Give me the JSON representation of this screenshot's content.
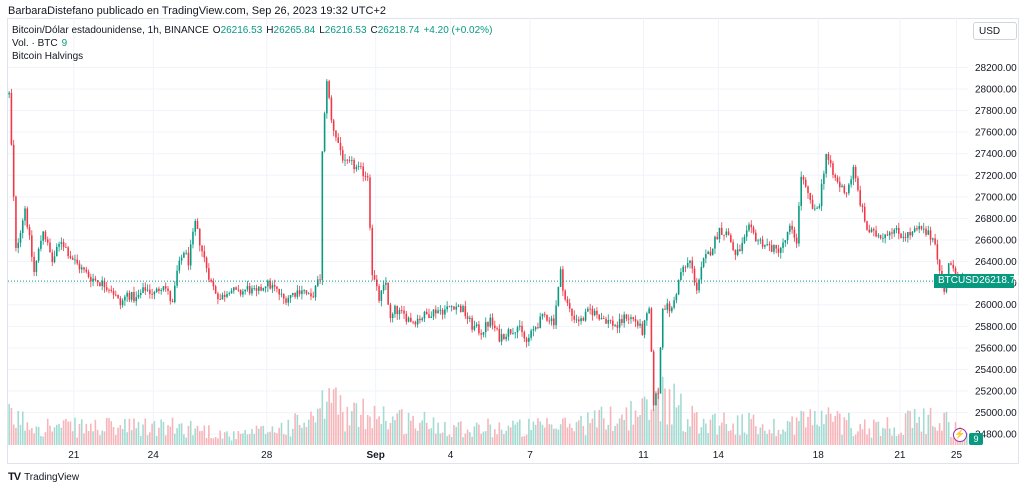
{
  "header": {
    "published_by": "BarbaraDistefano publicado en TradingView.com, Sep 26, 2023 19:32 UTC+2"
  },
  "legend": {
    "symbol": "Bitcoin/Dólar estadounidense, 1h, BINANCE",
    "o_label": "O",
    "o_value": "26216.53",
    "h_label": "H",
    "h_value": "26265.84",
    "l_label": "L",
    "l_value": "26216.53",
    "c_label": "C",
    "c_value": "26218.74",
    "change": "+4.20 (+0.02%)",
    "volume_label": "Vol. · BTC",
    "volume_value": "9",
    "indicator": "Bitcoin Halvings"
  },
  "currency": "USD",
  "price_badge": {
    "ticker": "BTCUSD",
    "value": "26218.74"
  },
  "event_badge": "9",
  "brand": {
    "icon": "TV",
    "name": "TradingView"
  },
  "colors": {
    "up": "#089981",
    "down": "#f23645",
    "up_vol": "#a3dbd3",
    "down_vol": "#f7b4b9",
    "grid": "#f0f3fa",
    "text": "#131722"
  },
  "chart_data": {
    "type": "candlestick",
    "symbol": "BTCUSD",
    "timeframe": "1h",
    "exchange": "BINANCE",
    "ylim": [
      24700,
      28250
    ],
    "y_ticks": [
      "28200.00",
      "28000.00",
      "27800.00",
      "27600.00",
      "27400.00",
      "27200.00",
      "27000.00",
      "26800.00",
      "26600.00",
      "26400.00",
      "26200.00",
      "26000.00",
      "25800.00",
      "25600.00",
      "25400.00",
      "25200.00",
      "25000.00",
      "24800.00"
    ],
    "x_ticks": [
      "21",
      "24",
      "28",
      "Sep",
      "4",
      "7",
      "11",
      "14",
      "18",
      "21",
      "25"
    ],
    "last_price": 26218.74,
    "price_path": [
      [
        0,
        27950
      ],
      [
        3,
        26500
      ],
      [
        7,
        26900
      ],
      [
        11,
        26300
      ],
      [
        15,
        26700
      ],
      [
        19,
        26400
      ],
      [
        23,
        26600
      ],
      [
        27,
        26450
      ],
      [
        31,
        26350
      ],
      [
        36,
        26250
      ],
      [
        41,
        26200
      ],
      [
        45,
        26150
      ],
      [
        49,
        26000
      ],
      [
        52,
        26100
      ],
      [
        56,
        26050
      ],
      [
        60,
        26150
      ],
      [
        64,
        26100
      ],
      [
        68,
        26200
      ],
      [
        72,
        26000
      ],
      [
        74,
        26300
      ],
      [
        77,
        26500
      ],
      [
        79,
        26400
      ],
      [
        82,
        26750
      ],
      [
        85,
        26500
      ],
      [
        89,
        26200
      ],
      [
        93,
        26050
      ],
      [
        97,
        26150
      ],
      [
        101,
        26100
      ],
      [
        105,
        26150
      ],
      [
        109,
        26100
      ],
      [
        113,
        26200
      ],
      [
        117,
        26150
      ],
      [
        121,
        26050
      ],
      [
        125,
        26100
      ],
      [
        129,
        26150
      ],
      [
        133,
        26050
      ],
      [
        137,
        26250
      ],
      [
        138,
        27400
      ],
      [
        140,
        28100
      ],
      [
        142,
        27700
      ],
      [
        145,
        27500
      ],
      [
        148,
        27300
      ],
      [
        151,
        27300
      ],
      [
        154,
        27250
      ],
      [
        158,
        27200
      ],
      [
        160,
        26300
      ],
      [
        163,
        26050
      ],
      [
        166,
        26200
      ],
      [
        168,
        25850
      ],
      [
        170,
        25950
      ],
      [
        174,
        25900
      ],
      [
        178,
        25850
      ],
      [
        183,
        25900
      ],
      [
        188,
        25950
      ],
      [
        192,
        25950
      ],
      [
        196,
        26000
      ],
      [
        200,
        25950
      ],
      [
        204,
        25800
      ],
      [
        208,
        25750
      ],
      [
        212,
        25850
      ],
      [
        216,
        25700
      ],
      [
        220,
        25750
      ],
      [
        224,
        25800
      ],
      [
        228,
        25650
      ],
      [
        232,
        25800
      ],
      [
        236,
        25900
      ],
      [
        240,
        25850
      ],
      [
        243,
        26300
      ],
      [
        245,
        26050
      ],
      [
        248,
        25900
      ],
      [
        252,
        25850
      ],
      [
        256,
        25950
      ],
      [
        260,
        25900
      ],
      [
        264,
        25850
      ],
      [
        268,
        25800
      ],
      [
        272,
        25900
      ],
      [
        276,
        25850
      ],
      [
        279,
        25750
      ],
      [
        282,
        25950
      ],
      [
        284,
        25100
      ],
      [
        286,
        25200
      ],
      [
        288,
        26000
      ],
      [
        292,
        25950
      ],
      [
        296,
        26300
      ],
      [
        300,
        26400
      ],
      [
        303,
        26150
      ],
      [
        306,
        26400
      ],
      [
        309,
        26500
      ],
      [
        313,
        26700
      ],
      [
        317,
        26650
      ],
      [
        320,
        26450
      ],
      [
        323,
        26550
      ],
      [
        326,
        26700
      ],
      [
        330,
        26600
      ],
      [
        334,
        26550
      ],
      [
        338,
        26500
      ],
      [
        341,
        26550
      ],
      [
        344,
        26700
      ],
      [
        347,
        26600
      ],
      [
        349,
        27200
      ],
      [
        352,
        27000
      ],
      [
        355,
        26850
      ],
      [
        357,
        26950
      ],
      [
        360,
        27400
      ],
      [
        363,
        27200
      ],
      [
        366,
        27100
      ],
      [
        369,
        27050
      ],
      [
        372,
        27250
      ],
      [
        375,
        26950
      ],
      [
        378,
        26700
      ],
      [
        381,
        26650
      ],
      [
        385,
        26650
      ],
      [
        389,
        26700
      ],
      [
        393,
        26650
      ],
      [
        397,
        26650
      ],
      [
        401,
        26700
      ],
      [
        405,
        26650
      ],
      [
        408,
        26600
      ],
      [
        410,
        26300
      ],
      [
        412,
        26100
      ],
      [
        414,
        26400
      ],
      [
        416,
        26300
      ],
      [
        419,
        26250
      ],
      [
        422,
        26200
      ]
    ],
    "volume_path": [
      [
        0,
        3
      ],
      [
        20,
        2
      ],
      [
        40,
        2
      ],
      [
        60,
        2
      ],
      [
        80,
        2
      ],
      [
        100,
        1
      ],
      [
        120,
        2
      ],
      [
        137,
        3
      ],
      [
        140,
        6
      ],
      [
        150,
        3
      ],
      [
        160,
        4
      ],
      [
        168,
        3
      ],
      [
        200,
        2
      ],
      [
        240,
        2
      ],
      [
        284,
        4
      ],
      [
        288,
        6
      ],
      [
        300,
        3
      ],
      [
        340,
        2
      ],
      [
        349,
        3
      ],
      [
        360,
        3
      ],
      [
        380,
        2
      ],
      [
        410,
        3
      ],
      [
        422,
        1
      ]
    ]
  }
}
